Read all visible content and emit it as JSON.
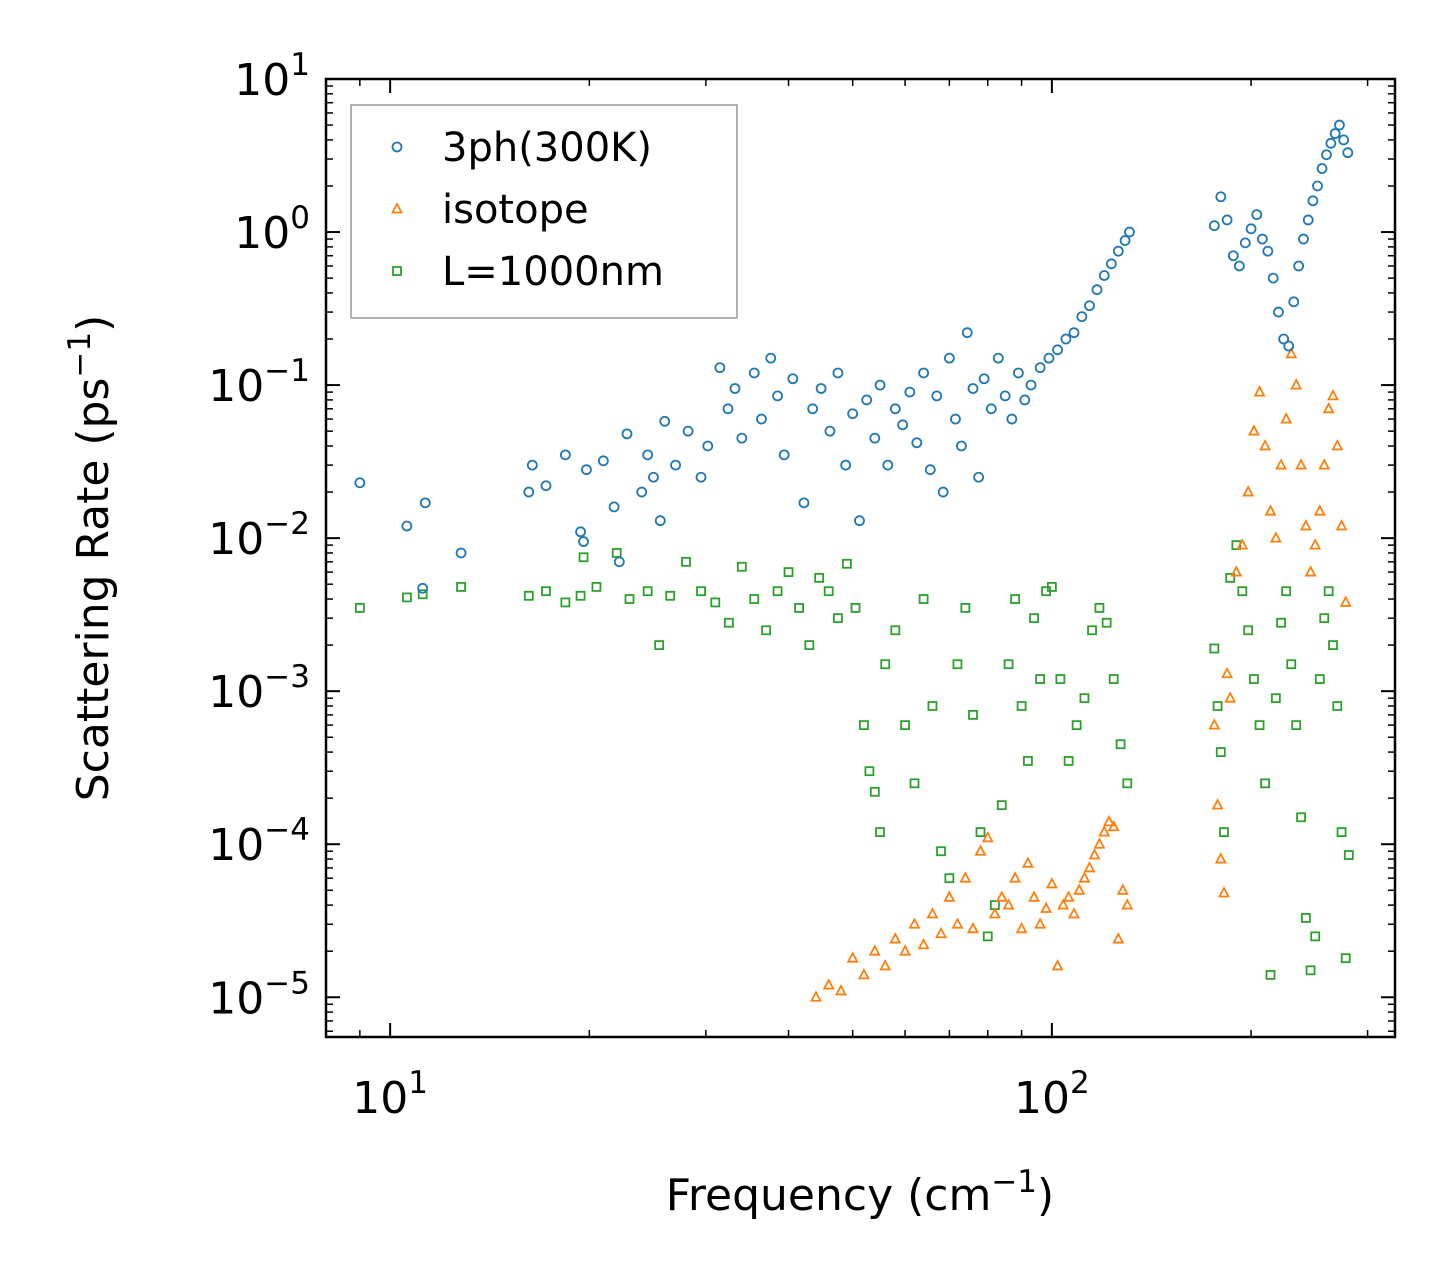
{
  "chart_data": {
    "type": "scatter",
    "title": "",
    "xlabel": {
      "text": "Frequency (cm",
      "sup": "−1",
      "close": ")"
    },
    "ylabel": {
      "text": "Scattering Rate (ps",
      "sup": "−1",
      "close": ")"
    },
    "xscale": "log",
    "yscale": "log",
    "xlim": [
      8,
      330
    ],
    "ylim": [
      5.5e-06,
      10
    ],
    "x_ticks": [
      {
        "value": 10,
        "base": "10",
        "exp": "1"
      },
      {
        "value": 100,
        "base": "10",
        "exp": "2"
      }
    ],
    "y_ticks": [
      {
        "value": 10,
        "base": "10",
        "exp": "1"
      },
      {
        "value": 1,
        "base": "10",
        "exp": "0"
      },
      {
        "value": 0.1,
        "base": "10",
        "exp": "−1"
      },
      {
        "value": 0.01,
        "base": "10",
        "exp": "−2"
      },
      {
        "value": 0.001,
        "base": "10",
        "exp": "−3"
      },
      {
        "value": 0.0001,
        "base": "10",
        "exp": "−4"
      },
      {
        "value": 1e-05,
        "base": "10",
        "exp": "−5"
      }
    ],
    "legend_position": "top-left",
    "series": [
      {
        "name": "3ph(300K)",
        "marker": "circle",
        "color": "#1f77b4",
        "points": [
          [
            9,
            0.023
          ],
          [
            10.6,
            0.012
          ],
          [
            11.3,
            0.017
          ],
          [
            11.2,
            0.0047
          ],
          [
            12.8,
            0.008
          ],
          [
            16.2,
            0.02
          ],
          [
            16.4,
            0.03
          ],
          [
            17.2,
            0.022
          ],
          [
            18.4,
            0.035
          ],
          [
            19.4,
            0.011
          ],
          [
            19.6,
            0.0095
          ],
          [
            19.8,
            0.028
          ],
          [
            21,
            0.032
          ],
          [
            21.8,
            0.016
          ],
          [
            22.2,
            0.007
          ],
          [
            22.8,
            0.048
          ],
          [
            24,
            0.02
          ],
          [
            24.5,
            0.035
          ],
          [
            25,
            0.025
          ],
          [
            25.6,
            0.013
          ],
          [
            26,
            0.058
          ],
          [
            27,
            0.03
          ],
          [
            28.2,
            0.05
          ],
          [
            29.5,
            0.025
          ],
          [
            30.2,
            0.04
          ],
          [
            31.5,
            0.13
          ],
          [
            32.4,
            0.07
          ],
          [
            33.2,
            0.095
          ],
          [
            34,
            0.045
          ],
          [
            35.5,
            0.12
          ],
          [
            36.4,
            0.06
          ],
          [
            37.6,
            0.15
          ],
          [
            38.5,
            0.085
          ],
          [
            39.4,
            0.035
          ],
          [
            40.6,
            0.11
          ],
          [
            42.2,
            0.017
          ],
          [
            43.5,
            0.07
          ],
          [
            44.8,
            0.095
          ],
          [
            46.2,
            0.05
          ],
          [
            47.5,
            0.12
          ],
          [
            48.8,
            0.03
          ],
          [
            50,
            0.065
          ],
          [
            51.2,
            0.013
          ],
          [
            52.5,
            0.08
          ],
          [
            54,
            0.045
          ],
          [
            55,
            0.1
          ],
          [
            56.5,
            0.03
          ],
          [
            58,
            0.07
          ],
          [
            59.5,
            0.055
          ],
          [
            61,
            0.09
          ],
          [
            62.5,
            0.042
          ],
          [
            64,
            0.12
          ],
          [
            65.5,
            0.028
          ],
          [
            67,
            0.085
          ],
          [
            68.5,
            0.02
          ],
          [
            70,
            0.15
          ],
          [
            71.5,
            0.06
          ],
          [
            73,
            0.04
          ],
          [
            74.5,
            0.22
          ],
          [
            76,
            0.095
          ],
          [
            77.5,
            0.025
          ],
          [
            79,
            0.11
          ],
          [
            81,
            0.07
          ],
          [
            83,
            0.15
          ],
          [
            85,
            0.085
          ],
          [
            87,
            0.06
          ],
          [
            89,
            0.12
          ],
          [
            91,
            0.08
          ],
          [
            93,
            0.1
          ],
          [
            96,
            0.13
          ],
          [
            99,
            0.15
          ],
          [
            102,
            0.17
          ],
          [
            105,
            0.2
          ],
          [
            108,
            0.22
          ],
          [
            111,
            0.28
          ],
          [
            114,
            0.33
          ],
          [
            117,
            0.42
          ],
          [
            120,
            0.52
          ],
          [
            123,
            0.62
          ],
          [
            126,
            0.75
          ],
          [
            129,
            0.88
          ],
          [
            131,
            1.0
          ],
          [
            176,
            1.1
          ],
          [
            180,
            1.7
          ],
          [
            184,
            1.2
          ],
          [
            188,
            0.7
          ],
          [
            192,
            0.6
          ],
          [
            196,
            0.85
          ],
          [
            200,
            1.05
          ],
          [
            204,
            1.3
          ],
          [
            208,
            0.9
          ],
          [
            212,
            0.75
          ],
          [
            216,
            0.5
          ],
          [
            220,
            0.3
          ],
          [
            224,
            0.2
          ],
          [
            228,
            0.18
          ],
          [
            232,
            0.35
          ],
          [
            236,
            0.6
          ],
          [
            240,
            0.9
          ],
          [
            244,
            1.2
          ],
          [
            248,
            1.6
          ],
          [
            252,
            2.0
          ],
          [
            256,
            2.6
          ],
          [
            260,
            3.2
          ],
          [
            264,
            3.8
          ],
          [
            268,
            4.4
          ],
          [
            272,
            5.0
          ],
          [
            276,
            4.0
          ],
          [
            280,
            3.3
          ]
        ]
      },
      {
        "name": "isotope",
        "marker": "triangle",
        "color": "#ff7f0e",
        "points": [
          [
            44,
            1e-05
          ],
          [
            46,
            1.2e-05
          ],
          [
            48,
            1.1e-05
          ],
          [
            50,
            1.8e-05
          ],
          [
            52,
            1.4e-05
          ],
          [
            54,
            2e-05
          ],
          [
            56,
            1.6e-05
          ],
          [
            58,
            2.4e-05
          ],
          [
            60,
            2e-05
          ],
          [
            62,
            3e-05
          ],
          [
            64,
            2.2e-05
          ],
          [
            66,
            3.5e-05
          ],
          [
            68,
            2.6e-05
          ],
          [
            70,
            4.5e-05
          ],
          [
            72,
            3e-05
          ],
          [
            74,
            6e-05
          ],
          [
            76,
            2.8e-05
          ],
          [
            78,
            9e-05
          ],
          [
            80,
            0.00011
          ],
          [
            82,
            3.5e-05
          ],
          [
            84,
            4.5e-05
          ],
          [
            86,
            4e-05
          ],
          [
            88,
            6e-05
          ],
          [
            90,
            2.8e-05
          ],
          [
            92,
            7.5e-05
          ],
          [
            94,
            4.5e-05
          ],
          [
            96,
            3e-05
          ],
          [
            98,
            3.8e-05
          ],
          [
            100,
            5.5e-05
          ],
          [
            102,
            1.6e-05
          ],
          [
            104,
            4e-05
          ],
          [
            106,
            4.5e-05
          ],
          [
            108,
            3.5e-05
          ],
          [
            110,
            5e-05
          ],
          [
            112,
            6e-05
          ],
          [
            114,
            7e-05
          ],
          [
            116,
            8.5e-05
          ],
          [
            118,
            0.0001
          ],
          [
            120,
            0.00012
          ],
          [
            122,
            0.00014
          ],
          [
            124,
            0.00013
          ],
          [
            126,
            2.4e-05
          ],
          [
            128,
            5e-05
          ],
          [
            130,
            4e-05
          ],
          [
            176,
            0.0006
          ],
          [
            178,
            0.00018
          ],
          [
            180,
            8e-05
          ],
          [
            182,
            4.8e-05
          ],
          [
            184,
            0.0013
          ],
          [
            186,
            0.0009
          ],
          [
            190,
            0.006
          ],
          [
            194,
            0.009
          ],
          [
            198,
            0.02
          ],
          [
            202,
            0.05
          ],
          [
            206,
            0.09
          ],
          [
            210,
            0.04
          ],
          [
            214,
            0.015
          ],
          [
            218,
            0.01
          ],
          [
            222,
            0.03
          ],
          [
            226,
            0.06
          ],
          [
            230,
            0.16
          ],
          [
            234,
            0.1
          ],
          [
            238,
            0.03
          ],
          [
            242,
            0.012
          ],
          [
            246,
            0.006
          ],
          [
            250,
            0.009
          ],
          [
            254,
            0.015
          ],
          [
            258,
            0.03
          ],
          [
            262,
            0.07
          ],
          [
            266,
            0.085
          ],
          [
            270,
            0.04
          ],
          [
            274,
            0.012
          ],
          [
            278,
            0.0038
          ]
        ]
      },
      {
        "name": "L=1000nm",
        "marker": "square",
        "color": "#2ca02c",
        "points": [
          [
            9,
            0.0035
          ],
          [
            10.6,
            0.0041
          ],
          [
            11.2,
            0.0043
          ],
          [
            12.8,
            0.0048
          ],
          [
            16.2,
            0.0042
          ],
          [
            17.2,
            0.0045
          ],
          [
            18.4,
            0.0038
          ],
          [
            19.4,
            0.0042
          ],
          [
            19.6,
            0.0075
          ],
          [
            20.5,
            0.0048
          ],
          [
            22,
            0.008
          ],
          [
            23,
            0.004
          ],
          [
            24.5,
            0.0045
          ],
          [
            25.5,
            0.002
          ],
          [
            26.5,
            0.0042
          ],
          [
            28,
            0.007
          ],
          [
            29.5,
            0.0045
          ],
          [
            31,
            0.0038
          ],
          [
            32.5,
            0.0028
          ],
          [
            34,
            0.0065
          ],
          [
            35.5,
            0.004
          ],
          [
            37,
            0.0025
          ],
          [
            38.5,
            0.0045
          ],
          [
            40,
            0.006
          ],
          [
            41.5,
            0.0035
          ],
          [
            43,
            0.002
          ],
          [
            44.5,
            0.0055
          ],
          [
            46,
            0.0045
          ],
          [
            47.5,
            0.003
          ],
          [
            49,
            0.0068
          ],
          [
            50.5,
            0.0035
          ],
          [
            52,
            0.0006
          ],
          [
            53,
            0.0003
          ],
          [
            54,
            0.00022
          ],
          [
            55,
            0.00012
          ],
          [
            56,
            0.0015
          ],
          [
            58,
            0.0025
          ],
          [
            60,
            0.0006
          ],
          [
            62,
            0.00025
          ],
          [
            64,
            0.004
          ],
          [
            66,
            0.0008
          ],
          [
            68,
            9e-05
          ],
          [
            70,
            6e-05
          ],
          [
            72,
            0.0015
          ],
          [
            74,
            0.0035
          ],
          [
            76,
            0.0007
          ],
          [
            78,
            0.00012
          ],
          [
            80,
            2.5e-05
          ],
          [
            82,
            4e-05
          ],
          [
            84,
            0.00018
          ],
          [
            86,
            0.0015
          ],
          [
            88,
            0.004
          ],
          [
            90,
            0.0008
          ],
          [
            92,
            0.00035
          ],
          [
            94,
            0.003
          ],
          [
            96,
            0.0012
          ],
          [
            98,
            0.0045
          ],
          [
            100,
            0.0048
          ],
          [
            103,
            0.0012
          ],
          [
            106,
            0.00035
          ],
          [
            109,
            0.0006
          ],
          [
            112,
            0.0009
          ],
          [
            115,
            0.0025
          ],
          [
            118,
            0.0035
          ],
          [
            121,
            0.0028
          ],
          [
            124,
            0.0012
          ],
          [
            127,
            0.00045
          ],
          [
            130,
            0.00025
          ],
          [
            176,
            0.0019
          ],
          [
            178,
            0.0008
          ],
          [
            180,
            0.0004
          ],
          [
            182,
            0.00012
          ],
          [
            186,
            0.0055
          ],
          [
            190,
            0.009
          ],
          [
            194,
            0.0045
          ],
          [
            198,
            0.0025
          ],
          [
            202,
            0.0012
          ],
          [
            206,
            0.0006
          ],
          [
            210,
            0.00025
          ],
          [
            214,
            1.4e-05
          ],
          [
            218,
            0.0009
          ],
          [
            222,
            0.0028
          ],
          [
            226,
            0.0045
          ],
          [
            230,
            0.0015
          ],
          [
            234,
            0.0006
          ],
          [
            238,
            0.00015
          ],
          [
            242,
            3.3e-05
          ],
          [
            246,
            1.5e-05
          ],
          [
            250,
            2.5e-05
          ],
          [
            254,
            0.0012
          ],
          [
            258,
            0.003
          ],
          [
            262,
            0.0045
          ],
          [
            266,
            0.002
          ],
          [
            270,
            0.0008
          ],
          [
            274,
            0.00012
          ],
          [
            278,
            1.8e-05
          ],
          [
            281,
            8.5e-05
          ]
        ]
      }
    ]
  }
}
